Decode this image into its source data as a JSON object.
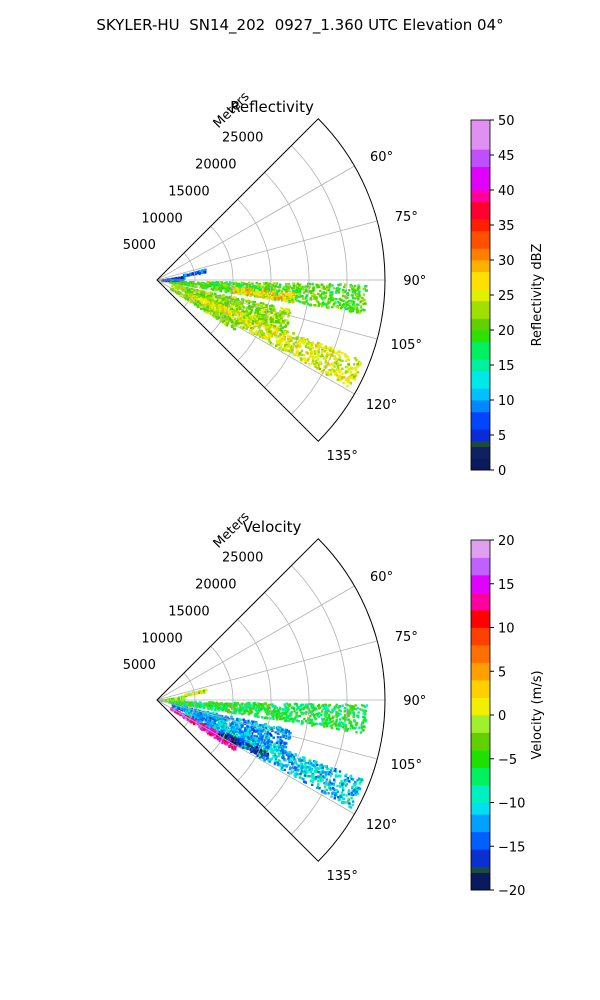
{
  "suptitle": "SKYLER-HU  SN14_202  0927_1.360 UTC Elevation 04°",
  "chart_data": [
    {
      "type": "polar-sector",
      "title": "Reflectivity",
      "radial_label": "Meters",
      "radial_ticks": [
        5000,
        10000,
        15000,
        20000,
        25000
      ],
      "radial_tick_labels": [
        "5000",
        "10000",
        "15000",
        "20000",
        "25000"
      ],
      "rmax": 30000,
      "theta_range_deg": [
        45,
        135
      ],
      "theta_ticks": [
        60,
        75,
        90,
        105,
        120,
        135
      ],
      "theta_tick_labels": [
        "60°",
        "75°",
        "90°",
        "105°",
        "120°",
        "135°"
      ],
      "grid": true,
      "colorbar": {
        "label": "Reflectivity dBZ",
        "range": [
          0,
          50
        ],
        "ticks": [
          0,
          5,
          10,
          15,
          20,
          25,
          30,
          35,
          40,
          45,
          50
        ],
        "tick_labels": [
          "0",
          "5",
          "10",
          "15",
          "20",
          "25",
          "30",
          "35",
          "40",
          "45",
          "50"
        ]
      },
      "echo_regions": [
        {
          "az_deg": 95,
          "r_start": 1500,
          "r_end": 27500,
          "half_width_deg": 4,
          "value": 20
        },
        {
          "az_deg": 107,
          "r_start": 2000,
          "r_end": 18000,
          "half_width_deg": 5,
          "value": 22
        },
        {
          "az_deg": 115,
          "r_start": 4000,
          "r_end": 29000,
          "half_width_deg": 4,
          "value": 25
        },
        {
          "az_deg": 120,
          "r_start": 2000,
          "r_end": 12000,
          "half_width_deg": 3,
          "value": 22
        },
        {
          "az_deg": 78,
          "r_start": 3500,
          "r_end": 6500,
          "half_width_deg": 2,
          "value": 8
        },
        {
          "az_deg": 84,
          "r_start": 500,
          "r_end": 3500,
          "half_width_deg": 5,
          "value": 6
        },
        {
          "az_deg": 97,
          "r_start": 10000,
          "r_end": 18000,
          "half_width_deg": 2,
          "value": 27
        }
      ]
    },
    {
      "type": "polar-sector",
      "title": "Velocity",
      "radial_label": "Meters",
      "radial_ticks": [
        5000,
        10000,
        15000,
        20000,
        25000
      ],
      "radial_tick_labels": [
        "5000",
        "10000",
        "15000",
        "20000",
        "25000"
      ],
      "rmax": 30000,
      "theta_range_deg": [
        45,
        135
      ],
      "theta_ticks": [
        60,
        75,
        90,
        105,
        120,
        135
      ],
      "theta_tick_labels": [
        "60°",
        "75°",
        "90°",
        "105°",
        "120°",
        "135°"
      ],
      "grid": true,
      "colorbar": {
        "label": "Velocity (m/s)",
        "range": [
          -20,
          20
        ],
        "ticks": [
          -20,
          -15,
          -10,
          -5,
          0,
          5,
          10,
          15,
          20
        ],
        "tick_labels": [
          "−20",
          "−15",
          "−10",
          "−5",
          "0",
          "5",
          "10",
          "15",
          "20"
        ]
      },
      "echo_regions": [
        {
          "az_deg": 95,
          "r_start": 1500,
          "r_end": 27500,
          "half_width_deg": 4,
          "value": -6
        },
        {
          "az_deg": 107,
          "r_start": 2000,
          "r_end": 18000,
          "half_width_deg": 5,
          "value": -12
        },
        {
          "az_deg": 115,
          "r_start": 4000,
          "r_end": 29000,
          "half_width_deg": 4,
          "value": -11
        },
        {
          "az_deg": 120,
          "r_start": 2000,
          "r_end": 12000,
          "half_width_deg": 3,
          "value": 14
        },
        {
          "az_deg": 117,
          "r_start": 9000,
          "r_end": 16000,
          "half_width_deg": 2,
          "value": -17
        },
        {
          "az_deg": 78,
          "r_start": 3500,
          "r_end": 6500,
          "half_width_deg": 2,
          "value": 0
        },
        {
          "az_deg": 84,
          "r_start": 500,
          "r_end": 3500,
          "half_width_deg": 5,
          "value": -3
        }
      ]
    }
  ]
}
